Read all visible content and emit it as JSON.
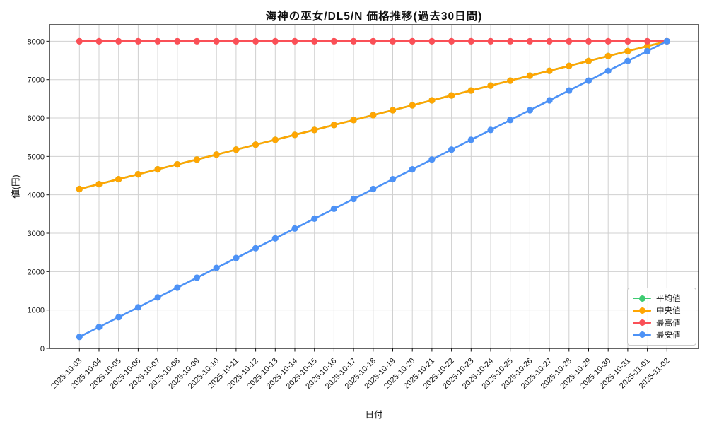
{
  "chart_data": {
    "type": "line",
    "title": "海神の巫女/DL5/N 価格推移(過去30日間)",
    "xlabel": "日付",
    "ylabel": "値(円)",
    "grid": true,
    "legend_position": "lower right",
    "ylim": [
      0,
      8430
    ],
    "yticks": [
      0,
      1000,
      2000,
      3000,
      4000,
      5000,
      6000,
      7000,
      8000
    ],
    "x": [
      "2025-10-03",
      "2025-10-04",
      "2025-10-05",
      "2025-10-06",
      "2025-10-07",
      "2025-10-08",
      "2025-10-09",
      "2025-10-10",
      "2025-10-11",
      "2025-10-12",
      "2025-10-13",
      "2025-10-14",
      "2025-10-15",
      "2025-10-16",
      "2025-10-17",
      "2025-10-18",
      "2025-10-19",
      "2025-10-20",
      "2025-10-21",
      "2025-10-22",
      "2025-10-23",
      "2025-10-24",
      "2025-10-25",
      "2025-10-26",
      "2025-10-27",
      "2025-10-28",
      "2025-10-29",
      "2025-10-30",
      "2025-10-31",
      "2025-11-01",
      "2025-11-02"
    ],
    "series": [
      {
        "name": "平均値",
        "color": "#3ecb72",
        "values": [
          4150,
          4278,
          4407,
          4535,
          4663,
          4792,
          4920,
          5048,
          5177,
          5305,
          5433,
          5562,
          5690,
          5818,
          5947,
          6075,
          6203,
          6332,
          6460,
          6588,
          6717,
          6845,
          6973,
          7102,
          7230,
          7358,
          7487,
          7615,
          7743,
          7872,
          8000
        ]
      },
      {
        "name": "中央値",
        "color": "#ffa502",
        "values": [
          4150,
          4278,
          4407,
          4535,
          4663,
          4792,
          4920,
          5048,
          5177,
          5305,
          5433,
          5562,
          5690,
          5818,
          5947,
          6075,
          6203,
          6332,
          6460,
          6588,
          6717,
          6845,
          6973,
          7102,
          7230,
          7358,
          7487,
          7615,
          7743,
          7872,
          8000
        ]
      },
      {
        "name": "最高値",
        "color": "#fa5057",
        "values": [
          8000,
          8000,
          8000,
          8000,
          8000,
          8000,
          8000,
          8000,
          8000,
          8000,
          8000,
          8000,
          8000,
          8000,
          8000,
          8000,
          8000,
          8000,
          8000,
          8000,
          8000,
          8000,
          8000,
          8000,
          8000,
          8000,
          8000,
          8000,
          8000,
          8000,
          8000
        ]
      },
      {
        "name": "最安値",
        "color": "#4d92f6",
        "values": [
          300,
          557,
          813,
          1070,
          1327,
          1583,
          1840,
          2097,
          2353,
          2610,
          2867,
          3123,
          3380,
          3637,
          3893,
          4150,
          4407,
          4663,
          4920,
          5177,
          5433,
          5690,
          5947,
          6203,
          6460,
          6717,
          6973,
          7230,
          7487,
          7743,
          8000
        ]
      }
    ]
  }
}
